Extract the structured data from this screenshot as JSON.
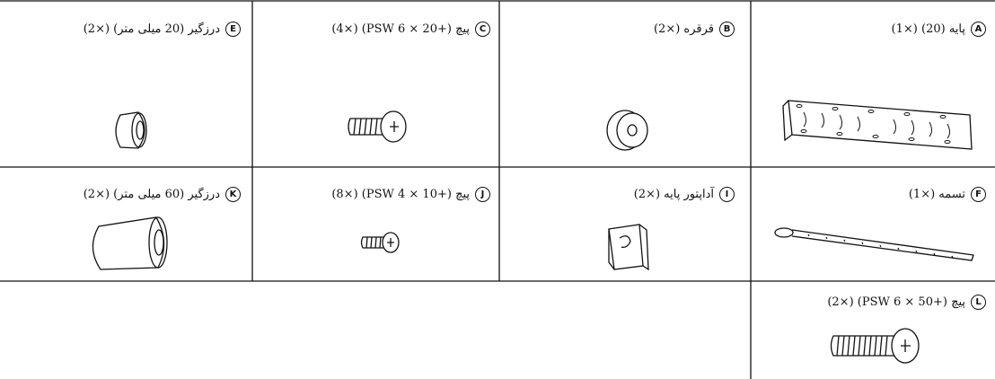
{
  "parts": [
    {
      "letter": "A",
      "label": "پایه (20) (×1)"
    },
    {
      "letter": "B",
      "label": "قرقره (×2)"
    },
    {
      "letter": "C",
      "label": "پیچ (+PSW 6 × 20) (×4)"
    },
    {
      "letter": "E",
      "label": "درزگیر (20 میلی متر) (×2)"
    },
    {
      "letter": "F",
      "label": "تسمه (×1)"
    },
    {
      "letter": "I",
      "label": "آداپتور پایه (×2)"
    },
    {
      "letter": "J",
      "label": "پیچ (+PSW 4 × 10) (×8)"
    },
    {
      "letter": "K",
      "label": "درزگیر (60 میلی متر) (×2)"
    },
    {
      "letter": "L",
      "label": "پیچ (+PSW 6 × 50) (×2)"
    }
  ]
}
